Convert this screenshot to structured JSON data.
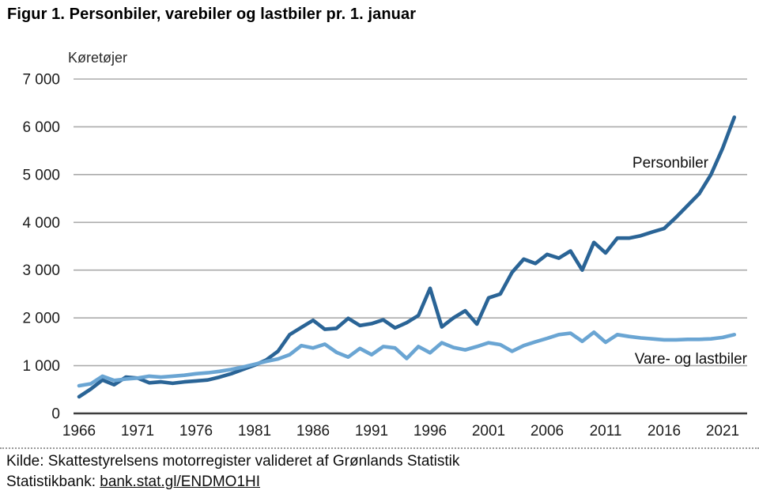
{
  "title": "Figur 1. Personbiler, varebiler og lastbiler pr. 1. januar",
  "chart_data": {
    "type": "line",
    "title": "Figur 1. Personbiler, varebiler og lastbiler pr. 1. januar",
    "y_axis_label": "Køretøjer",
    "ylim": [
      0,
      7000
    ],
    "grid": "horizontal",
    "y_ticks": [
      "0",
      "1 000",
      "2 000",
      "3 000",
      "4 000",
      "5 000",
      "6 000",
      "7 000"
    ],
    "x_ticks": [
      1966,
      1971,
      1976,
      1981,
      1986,
      1991,
      1996,
      2001,
      2006,
      2011,
      2016,
      2021
    ],
    "years": [
      1966,
      1967,
      1968,
      1969,
      1970,
      1971,
      1972,
      1973,
      1974,
      1975,
      1976,
      1977,
      1978,
      1979,
      1980,
      1981,
      1982,
      1983,
      1984,
      1985,
      1986,
      1987,
      1988,
      1989,
      1990,
      1991,
      1992,
      1993,
      1994,
      1995,
      1996,
      1997,
      1998,
      1999,
      2000,
      2001,
      2002,
      2003,
      2004,
      2005,
      2006,
      2007,
      2008,
      2009,
      2010,
      2011,
      2012,
      2013,
      2014,
      2015,
      2016,
      2017,
      2018,
      2019,
      2020,
      2021,
      2022
    ],
    "series": [
      {
        "name": "Personbiler",
        "color": "#2a6496",
        "values": [
          350,
          510,
          700,
          600,
          760,
          740,
          640,
          660,
          630,
          660,
          680,
          700,
          760,
          830,
          920,
          1010,
          1120,
          1300,
          1650,
          1800,
          1950,
          1760,
          1780,
          1990,
          1840,
          1880,
          1960,
          1790,
          1900,
          2050,
          2620,
          1810,
          2000,
          2150,
          1870,
          2420,
          2500,
          2950,
          3230,
          3140,
          3330,
          3250,
          3400,
          3000,
          3580,
          3360,
          3670,
          3670,
          3720,
          3800,
          3870,
          4100,
          4350,
          4600,
          5000,
          5550,
          6200
        ]
      },
      {
        "name": "Vare- og lastbiler",
        "color": "#6aa5d3",
        "values": [
          580,
          620,
          780,
          690,
          720,
          740,
          780,
          760,
          780,
          800,
          830,
          850,
          880,
          920,
          970,
          1030,
          1090,
          1140,
          1230,
          1420,
          1370,
          1450,
          1280,
          1180,
          1360,
          1230,
          1400,
          1370,
          1150,
          1400,
          1270,
          1480,
          1380,
          1330,
          1400,
          1480,
          1440,
          1300,
          1420,
          1500,
          1570,
          1650,
          1680,
          1510,
          1700,
          1490,
          1650,
          1610,
          1580,
          1560,
          1540,
          1540,
          1550,
          1550,
          1560,
          1590,
          1650
        ]
      }
    ],
    "grid_color": "#ababab",
    "zero_line_color": "#3d3d3d"
  },
  "footer": {
    "source_line": "Kilde: Skattestyrelsens motorregister valideret af Grønlands Statistik",
    "statbank_prefix": "Statistikbank: ",
    "statbank_link": "bank.stat.gl/ENDMO1HI"
  }
}
